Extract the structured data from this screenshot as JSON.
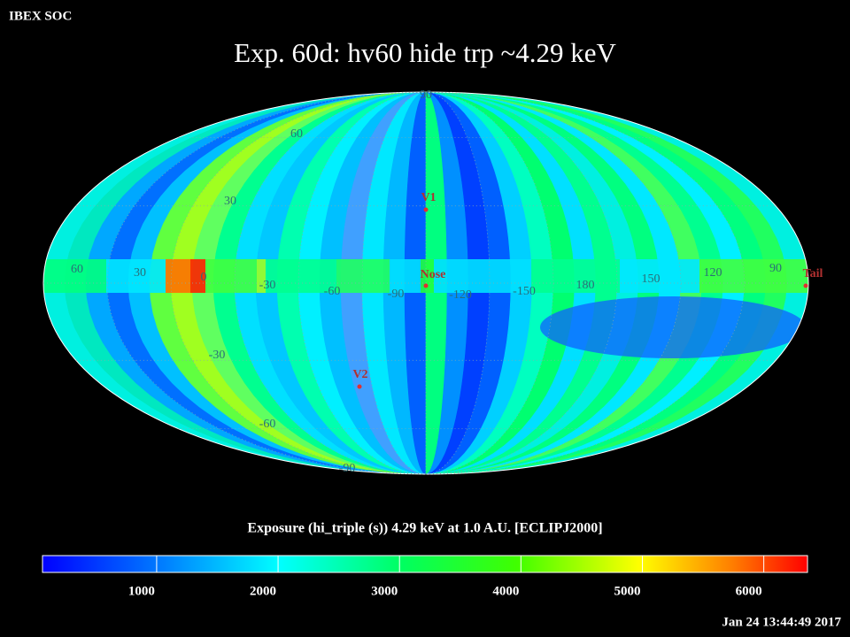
{
  "header": {
    "org": "IBEX SOC",
    "title": "Exp.   60d: hv60 hide trp ~4.29 keV",
    "timestamp": "Jan 24 13:44:49 2017"
  },
  "map": {
    "lat_labels": [
      90,
      60,
      30,
      -30,
      -60,
      -90
    ],
    "lon_labels": [
      60,
      30,
      0,
      -30,
      -60,
      -90,
      -120,
      -150,
      180,
      150,
      120,
      90
    ],
    "markers": [
      {
        "label": "V1"
      },
      {
        "label": "Nose"
      },
      {
        "label": "V2"
      },
      {
        "label": "Tail"
      }
    ]
  },
  "colorbar": {
    "caption": "Exposure (hi_triple (s))  4.29 keV at 1.0 A.U. [ECLIPJ2000]",
    "range": [
      60,
      6360
    ],
    "ticks": [
      1000,
      2000,
      3000,
      4000,
      5000,
      6000
    ]
  }
}
